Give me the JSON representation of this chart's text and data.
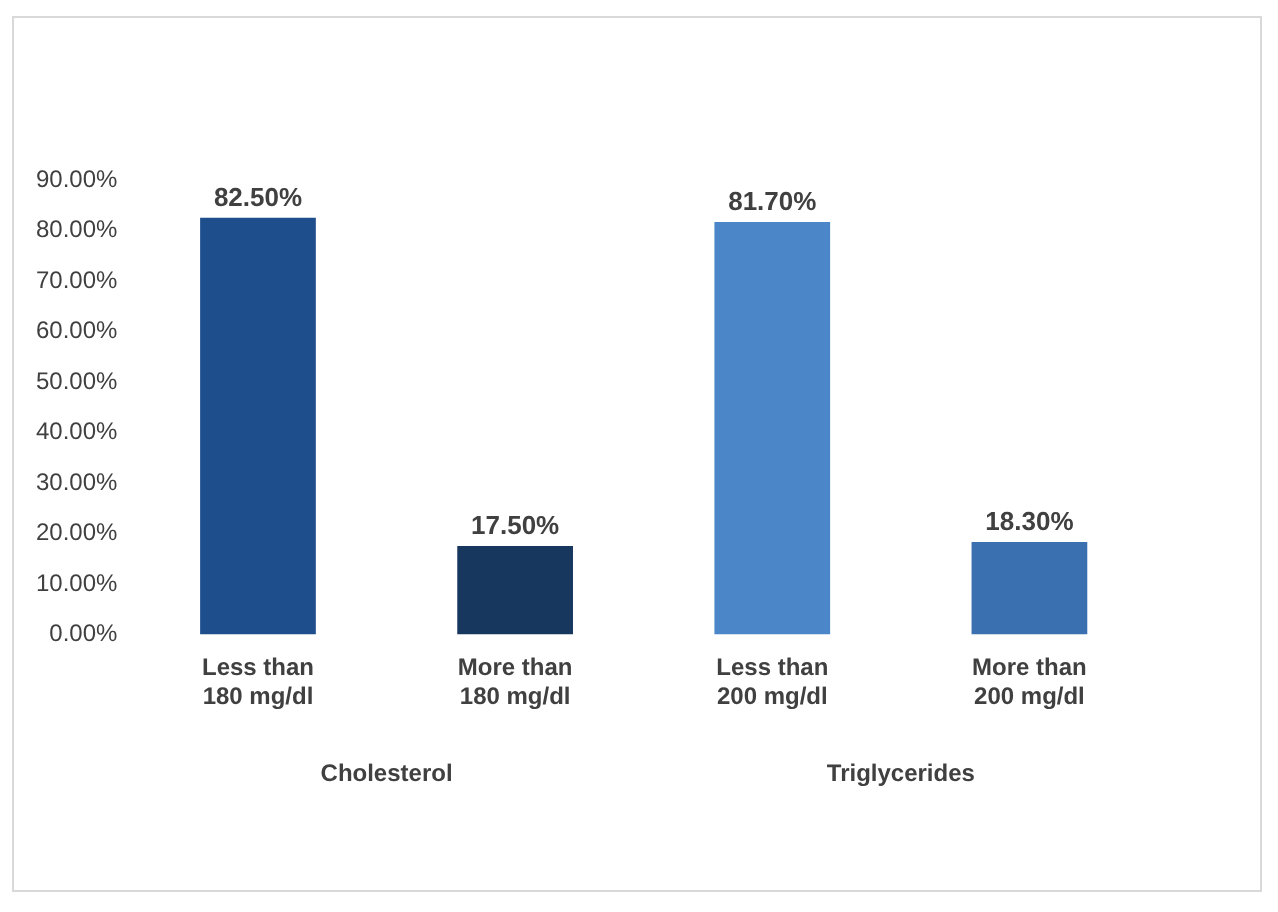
{
  "chart_data": {
    "type": "bar",
    "categories": [
      "Less than 180 mg/dl",
      "More than 180 mg/dl",
      "Less than 200 mg/dl",
      "More than 200 mg/dl"
    ],
    "values": [
      82.5,
      17.5,
      81.7,
      18.3
    ],
    "colors": [
      "#1f4e8c",
      "#17375e",
      "#4a86c8",
      "#3a6fb0"
    ],
    "value_labels": [
      "82.50%",
      "17.50%",
      "81.70%",
      "18.30%"
    ],
    "ylim": [
      0,
      90
    ],
    "yticks": [
      {
        "value": 0,
        "label": "0.00%"
      },
      {
        "value": 10,
        "label": "10.00%"
      },
      {
        "value": 20,
        "label": "20.00%"
      },
      {
        "value": 30,
        "label": "30.00%"
      },
      {
        "value": 40,
        "label": "40.00%"
      },
      {
        "value": 50,
        "label": "50.00%"
      },
      {
        "value": 60,
        "label": "60.00%"
      },
      {
        "value": 70,
        "label": "70.00%"
      },
      {
        "value": 80,
        "label": "80.00%"
      },
      {
        "value": 90,
        "label": "90.00%"
      }
    ],
    "annotations": [
      "Cholesterol",
      "Triglycerides"
    ],
    "grid": false,
    "legend": false
  }
}
